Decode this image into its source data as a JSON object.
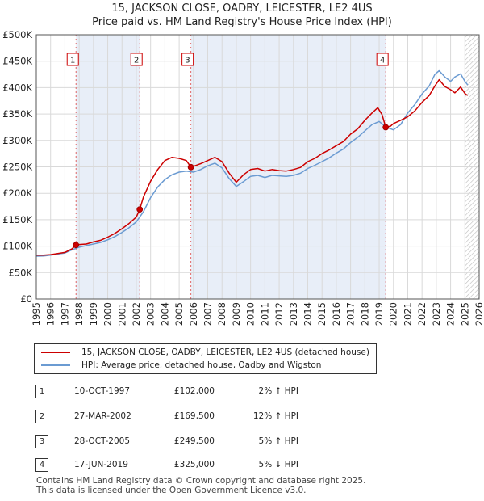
{
  "title_line1": "15, JACKSON CLOSE, OADBY, LEICESTER, LE2 4US",
  "title_line2": "Price paid vs. HM Land Registry's House Price Index (HPI)",
  "chart_data": {
    "type": "line",
    "title": "15, JACKSON CLOSE, OADBY, LEICESTER, LE2 4US — Price paid vs. HM Land Registry's House Price Index (HPI)",
    "xlim": [
      1995,
      2026
    ],
    "ylim": [
      0,
      500000
    ],
    "y_ticks": [
      0,
      50000,
      100000,
      150000,
      200000,
      250000,
      300000,
      350000,
      400000,
      450000,
      500000
    ],
    "y_tick_labels": [
      "£0",
      "£50K",
      "£100K",
      "£150K",
      "£200K",
      "£250K",
      "£300K",
      "£350K",
      "£400K",
      "£450K",
      "£500K"
    ],
    "x_ticks": [
      1995,
      1996,
      1997,
      1998,
      1999,
      2000,
      2001,
      2002,
      2003,
      2004,
      2005,
      2006,
      2007,
      2008,
      2009,
      2010,
      2011,
      2012,
      2013,
      2014,
      2015,
      2016,
      2017,
      2018,
      2019,
      2020,
      2021,
      2022,
      2023,
      2024,
      2025,
      2026
    ],
    "x_tick_labels": [
      "1995",
      "1996",
      "1997",
      "1998",
      "1999",
      "2000",
      "2001",
      "2002",
      "2003",
      "2004",
      "2005",
      "2006",
      "2007",
      "2008",
      "2009",
      "2010",
      "2011",
      "2012",
      "2013",
      "2014",
      "2015",
      "2016",
      "2017",
      "2018",
      "2019",
      "2020",
      "2021",
      "2022",
      "2023",
      "2024",
      "2025",
      "2026"
    ],
    "grid": true,
    "shaded_periods": [
      [
        1997.78,
        2002.24
      ],
      [
        2005.82,
        2019.46
      ]
    ],
    "hatched_after": 2025.0,
    "series": [
      {
        "name": "15, JACKSON CLOSE, OADBY, LEICESTER, LE2 4US (detached house)",
        "color": "#cc0000",
        "x": [
          1995.0,
          1995.5,
          1996.0,
          1996.5,
          1997.0,
          1997.5,
          1997.78,
          1998.0,
          1998.5,
          1999.0,
          1999.5,
          2000.0,
          2000.5,
          2001.0,
          2001.5,
          2002.0,
          2002.24,
          2002.5,
          2003.0,
          2003.5,
          2004.0,
          2004.5,
          2005.0,
          2005.5,
          2005.82,
          2006.0,
          2006.5,
          2007.0,
          2007.5,
          2008.0,
          2008.5,
          2009.0,
          2009.5,
          2010.0,
          2010.5,
          2011.0,
          2011.5,
          2012.0,
          2012.5,
          2013.0,
          2013.5,
          2014.0,
          2014.5,
          2015.0,
          2015.5,
          2016.0,
          2016.5,
          2017.0,
          2017.5,
          2018.0,
          2018.5,
          2018.9,
          2019.2,
          2019.46,
          2019.8,
          2020.0,
          2020.5,
          2021.0,
          2021.5,
          2022.0,
          2022.5,
          2022.9,
          2023.2,
          2023.6,
          2024.0,
          2024.3,
          2024.7,
          2025.0,
          2025.2
        ],
        "values": [
          83000,
          83000,
          84000,
          86000,
          88000,
          95000,
          102000,
          103000,
          104000,
          108000,
          111000,
          117000,
          124000,
          133000,
          143000,
          155000,
          169500,
          193000,
          223000,
          245000,
          262000,
          268000,
          266000,
          262000,
          249500,
          251000,
          256000,
          262000,
          268000,
          260000,
          238000,
          221000,
          235000,
          245000,
          247000,
          242000,
          245000,
          243000,
          242000,
          245000,
          249000,
          260000,
          266000,
          275000,
          282000,
          290000,
          298000,
          312000,
          322000,
          338000,
          352000,
          362000,
          349000,
          325000,
          327000,
          332000,
          338000,
          345000,
          356000,
          372000,
          385000,
          403000,
          415000,
          402000,
          396000,
          390000,
          401000,
          389000,
          385000
        ]
      },
      {
        "name": "HPI: Average price, detached house, Oadby and Wigston",
        "color": "#6b9bd2",
        "x": [
          1995.0,
          1995.5,
          1996.0,
          1996.5,
          1997.0,
          1997.5,
          1998.0,
          1998.5,
          1999.0,
          1999.5,
          2000.0,
          2000.5,
          2001.0,
          2001.5,
          2002.0,
          2002.5,
          2003.0,
          2003.5,
          2004.0,
          2004.5,
          2005.0,
          2005.5,
          2006.0,
          2006.5,
          2007.0,
          2007.5,
          2008.0,
          2008.5,
          2009.0,
          2009.5,
          2010.0,
          2010.5,
          2011.0,
          2011.5,
          2012.0,
          2012.5,
          2013.0,
          2013.5,
          2014.0,
          2014.5,
          2015.0,
          2015.5,
          2016.0,
          2016.5,
          2017.0,
          2017.5,
          2018.0,
          2018.5,
          2019.0,
          2019.5,
          2020.0,
          2020.5,
          2021.0,
          2021.5,
          2022.0,
          2022.5,
          2022.9,
          2023.2,
          2023.6,
          2024.0,
          2024.3,
          2024.7,
          2025.0,
          2025.2
        ],
        "values": [
          81000,
          81500,
          83000,
          85000,
          87000,
          93000,
          98000,
          101000,
          104000,
          107000,
          112000,
          118000,
          126000,
          135000,
          146000,
          165000,
          192000,
          212000,
          226000,
          235000,
          240000,
          242000,
          240000,
          245000,
          252000,
          257000,
          248000,
          228000,
          213000,
          222000,
          232000,
          234000,
          230000,
          234000,
          233000,
          232000,
          234000,
          238000,
          247000,
          253000,
          260000,
          267000,
          276000,
          284000,
          296000,
          306000,
          318000,
          330000,
          336000,
          325000,
          320000,
          330000,
          352000,
          368000,
          388000,
          403000,
          425000,
          432000,
          420000,
          412000,
          420000,
          426000,
          412000,
          405000
        ]
      }
    ],
    "sales": [
      {
        "label": "1",
        "date": "10-OCT-1997",
        "x": 1997.78,
        "price": 102000
      },
      {
        "label": "2",
        "date": "27-MAR-2002",
        "x": 2002.24,
        "price": 169500
      },
      {
        "label": "3",
        "date": "28-OCT-2005",
        "x": 2005.82,
        "price": 249500
      },
      {
        "label": "4",
        "date": "17-JUN-2019",
        "x": 2019.46,
        "price": 325000
      }
    ]
  },
  "legend": {
    "property": "15, JACKSON CLOSE, OADBY, LEICESTER, LE2 4US (detached house)",
    "hpi": "HPI: Average price, detached house, Oadby and Wigston",
    "property_color": "#cc0000",
    "hpi_color": "#6b9bd2"
  },
  "sales_table": [
    {
      "num": "1",
      "date": "10-OCT-1997",
      "price": "£102,000",
      "hpi": "2% ↑ HPI"
    },
    {
      "num": "2",
      "date": "27-MAR-2002",
      "price": "£169,500",
      "hpi": "12% ↑ HPI"
    },
    {
      "num": "3",
      "date": "28-OCT-2005",
      "price": "£249,500",
      "hpi": "5% ↑ HPI"
    },
    {
      "num": "4",
      "date": "17-JUN-2019",
      "price": "£325,000",
      "hpi": "5% ↓ HPI"
    }
  ],
  "footer": {
    "line1": "Contains HM Land Registry data © Crown copyright and database right 2025.",
    "line2": "This data is licensed under the Open Government Licence v3.0."
  }
}
